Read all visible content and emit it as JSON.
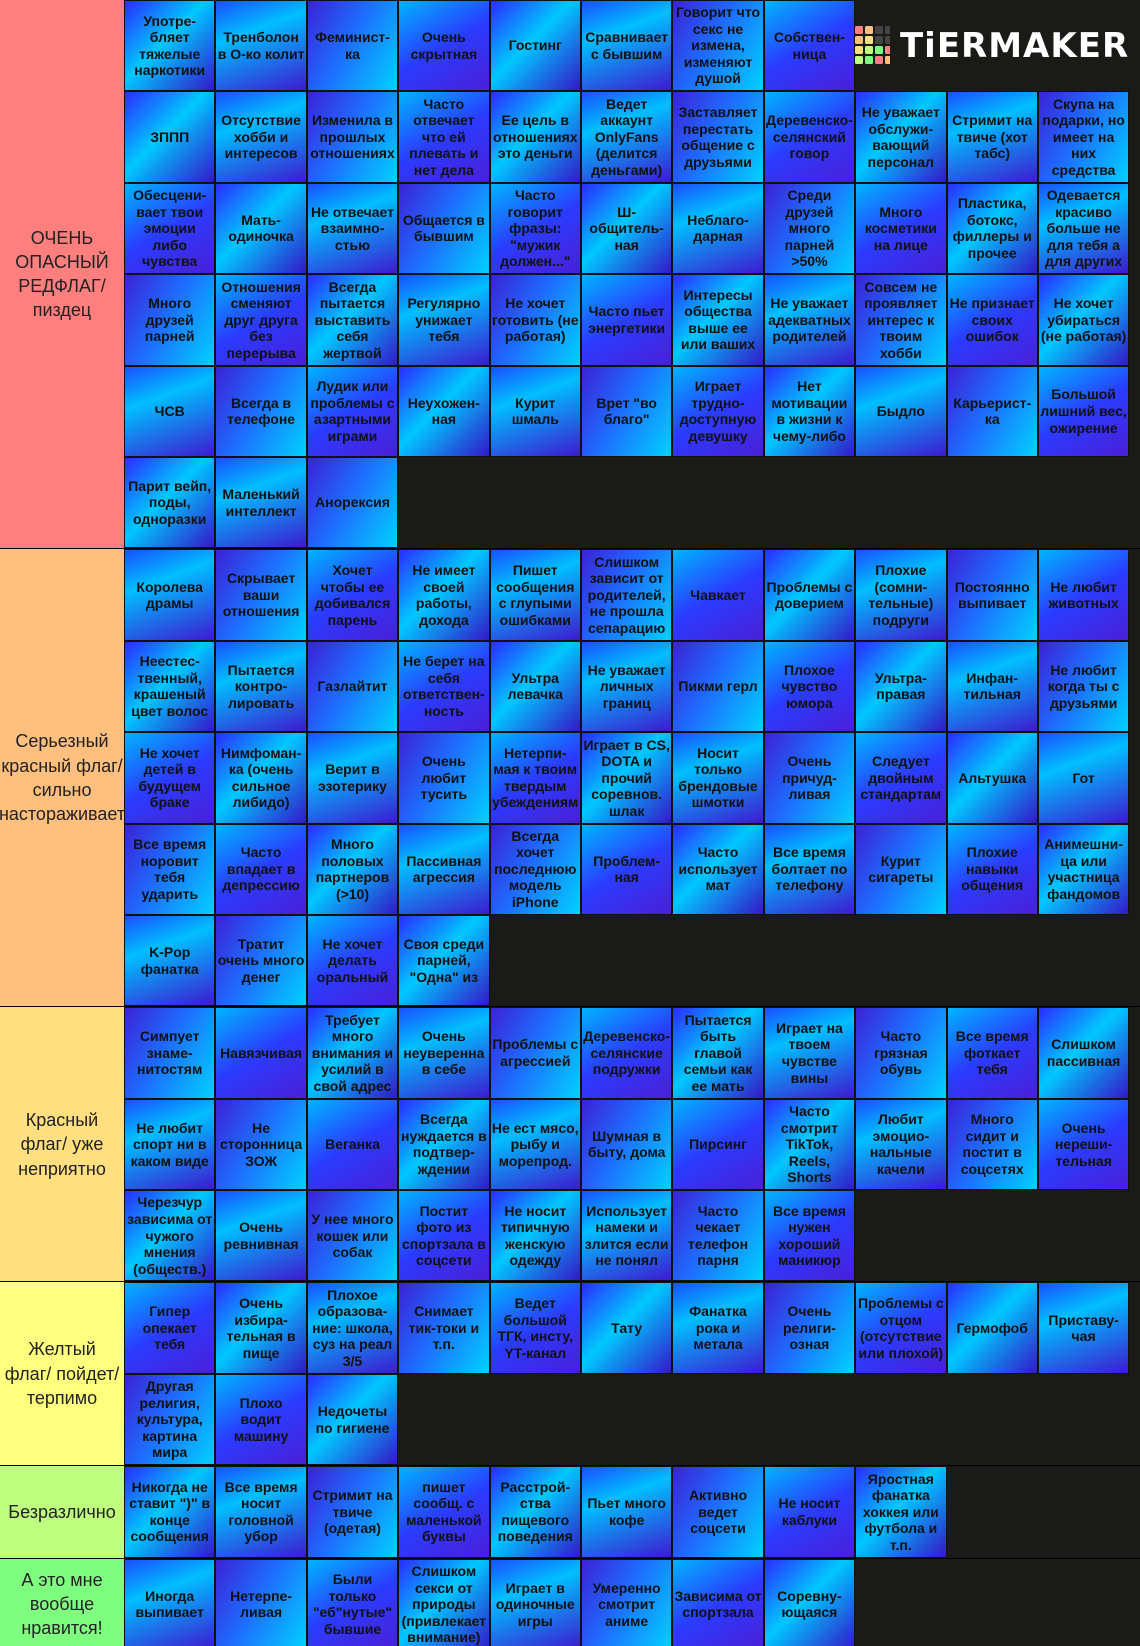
{
  "logo": "TiERMAKER",
  "tiers": [
    {
      "label": "ОЧЕНЬ ОПАСНЫЙ РЕДФЛАГ/ пиздец",
      "color": "#ff7f7f",
      "items": [
        "Употре-бляет тяжелые наркотики",
        "Тренболон в О-ко колит",
        "Феминист-ка",
        "Очень скрытная",
        "Гостинг",
        "Сравнивает с бывшим",
        "Говорит что секс не измена, изменяют душой",
        "Собствен-ница",
        "ЗППП",
        "Отсутствие хобби и интересов",
        "Изменила в прошлых отношениях",
        "Часто отвечает что ей плевать и нет дела",
        "Ее цель в отношениях это деньги",
        "Ведет аккаунт OnlyFans (делится деньгами)",
        "Заставляет перестать общение с друзьями",
        "Деревенско-селянский говор",
        "Не уважает обслужи-вающий персонал",
        "Стримит на твиче (хот табс)",
        "Скупа на подарки, но имеет на них средства",
        "Обесцени-вает твои эмоции либо чувства",
        "Мать-одиночка",
        "Не отвечает взаимно-стью",
        "Общается в бывшим",
        "Часто говорит фразы: \"мужик должен...\"",
        "Ш-общитель-ная",
        "Неблаго-дарная",
        "Среди друзей много парней >50%",
        "Много косметики на лице",
        "Пластика, ботокс, филлеры и прочее",
        "Одевается красиво больше не для тебя а для других",
        "Много друзей парней",
        "Отношения сменяют друг друга без перерыва",
        "Всегда пытается выставить себя жертвой",
        "Регулярно унижает тебя",
        "Не хочет готовить (не работая)",
        "Часто пьет энергетики",
        "Интересы общества выше ее или ваших",
        "Не уважает адекватных родителей",
        "Совсем не проявляет интерес к твоим хобби",
        "Не признает своих ошибок",
        "Не хочет убираться (не работая)",
        "ЧСВ",
        "Всегда в телефоне",
        "Лудик или проблемы с азартными играми",
        "Неухожен-ная",
        "Курит шмаль",
        "Врет \"во благо\"",
        "Играет трудно-доступную девушку",
        "Нет мотивации в жизни к чему-либо",
        "Быдло",
        "Карьерист-ка",
        "Большой лишний вес, ожирение",
        "Парит вейп, поды, одноразки",
        "Маленький интеллект",
        "Анорексия"
      ]
    },
    {
      "label": "Серьезный красный флаг/ сильно настораживает",
      "color": "#ffbf7f",
      "items": [
        "Королева драмы",
        "Скрывает ваши отношения",
        "Хочет чтобы ее добивался парень",
        "Не имеет своей работы, дохода",
        "Пишет сообщения с глупыми ошибками",
        "Слишком зависит от родителей, не прошла сепарацию",
        "Чавкает",
        "Проблемы с доверием",
        "Плохие (сомни-тельные) подруги",
        "Постоянно выпивает",
        "Не любит животных",
        "Неестес-твенный, крашеный цвет волос",
        "Пытается контро-лировать",
        "Газлайтит",
        "Не берет на себя ответствен-ность",
        "Ультра левачка",
        "Не уважает личных границ",
        "Пикми герл",
        "Плохое чувство юмора",
        "Ультра-правая",
        "Инфан-тильная",
        "Не любит когда ты с друзьями",
        "Не хочет детей в будущем браке",
        "Нимфоман-ка (очень сильное либидо)",
        "Верит в эзотерику",
        "Очень любит тусить",
        "Нетерпи-мая к твоим твердым убеждениям",
        "Играет в CS, DOTA и прочий соревнов. шлак",
        "Носит только брендовые шмотки",
        "Очень причуд-ливая",
        "Следует двойным стандартам",
        "Альтушка",
        "Гот",
        "Все время норовит тебя ударить",
        "Часто впадает в депрессию",
        "Много половых партнеров (>10)",
        "Пассивная агрессия",
        "Всегда хочет последнюю модель iPhone",
        "Проблем-ная",
        "Часто использует мат",
        "Все время болтает по телефону",
        "Курит сигареты",
        "Плохие навыки общения",
        "Анимешни-ца или участница фандомов",
        "K-Pop фанатка",
        "Тратит очень много денег",
        "Не хочет делать оральный",
        "Своя среди парней, \"Одна\" из"
      ]
    },
    {
      "label": "Красный флаг/ уже неприятно",
      "color": "#ffdf7f",
      "items": [
        "Симпует знаме-нитостям",
        "Навязчивая",
        "Требует много внимания и усилий в свой адрес",
        "Очень неуверенна в себе",
        "Проблемы с агрессией",
        "Деревенско-селянские подружки",
        "Пытается быть главой семьи как ее мать",
        "Играет на твоем чувстве вины",
        "Часто грязная обувь",
        "Все время фоткает тебя",
        "Слишком пассивная",
        "Не любит спорт ни в каком виде",
        "Не сторонница ЗОЖ",
        "Веганка",
        "Всегда нуждается в подтвер-ждении",
        "Не ест мясо, рыбу и морепрод.",
        "Шумная в быту, дома",
        "Пирсинг",
        "Часто смотрит TikTok, Reels, Shorts",
        "Любит эмоцио-нальные качели",
        "Много сидит и постит в соцсетях",
        "Очень нереши-тельная",
        "Черезчур зависима от чужого мнения (обществ.)",
        "Очень ревнивная",
        "У нее много кошек или собак",
        "Постит фото из спортзала в соцсети",
        "Не носит типичную женскую одежду",
        "Использует намеки и злится если не понял",
        "Часто чекает телефон парня",
        "Все время нужен хороший маникюр"
      ]
    },
    {
      "label": "Желтый флаг/ пойдет/ терпимо",
      "color": "#ffff7f",
      "items": [
        "Гипер опекает тебя",
        "Очень избира-тельная в пище",
        "Плохое образова-ние: школа, суз на реал 3/5",
        "Снимает тик-токи и т.п.",
        "Ведет большой ТГК, инсту, YT-канал",
        "Тату",
        "Фанатка рока и метала",
        "Очень религи-озная",
        "Проблемы с отцом (отсутствие или плохой)",
        "Гермофоб",
        "Приставу-чая",
        "Другая религия, культура, картина мира",
        "Плохо водит машину",
        "Недочеты по гигиене"
      ]
    },
    {
      "label": "Безразлично",
      "color": "#bfff7f",
      "items": [
        "Никогда не ставит \")\" в конце сообщения",
        "Все время носит головной убор",
        "Стримит на твиче (одетая)",
        "пишет сообщ. с маленькой буквы",
        "Расстрой-ства пищевого поведения",
        "Пьет много кофе",
        "Активно ведет соцсети",
        "Не носит каблуки",
        "Яростная фанатка хоккея или футбола и т.п."
      ]
    },
    {
      "label": "А это мне вообще нравится!",
      "color": "#7fff7f",
      "items": [
        "Иногда выпивает",
        "Нетерпе-ливая",
        "Были только \"еб\"нутые\" бывшие",
        "Слишком секси от природы (привлекает внимание)",
        "Играет в одиночные игры",
        "Умеренно смотрит аниме",
        "Зависима от спортзала",
        "Соревну-ющаяся"
      ]
    }
  ]
}
